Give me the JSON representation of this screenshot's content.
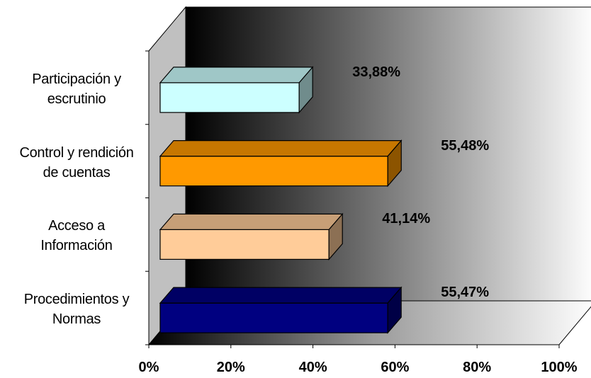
{
  "chart_data": {
    "type": "bar",
    "orientation": "horizontal",
    "style": "3d",
    "categories": [
      [
        "Participación y",
        "escrutinio"
      ],
      [
        "Control y rendición",
        "de cuentas"
      ],
      [
        "Acceso a",
        "Información"
      ],
      [
        "Procedimientos y",
        "Normas"
      ]
    ],
    "values": [
      33.88,
      55.48,
      41.14,
      55.47
    ],
    "value_labels": [
      "33,88%",
      "55,48%",
      "41,14%",
      "55,47%"
    ],
    "bar_colors": [
      "#ccffff",
      "#ff9900",
      "#ffcc99",
      "#000080"
    ],
    "xlim": [
      0,
      100
    ],
    "x_ticks": [
      0,
      20,
      40,
      60,
      80,
      100
    ],
    "x_tick_labels": [
      "0%",
      "20%",
      "40%",
      "60%",
      "80%",
      "100%"
    ],
    "grid": false,
    "legend": "none"
  }
}
